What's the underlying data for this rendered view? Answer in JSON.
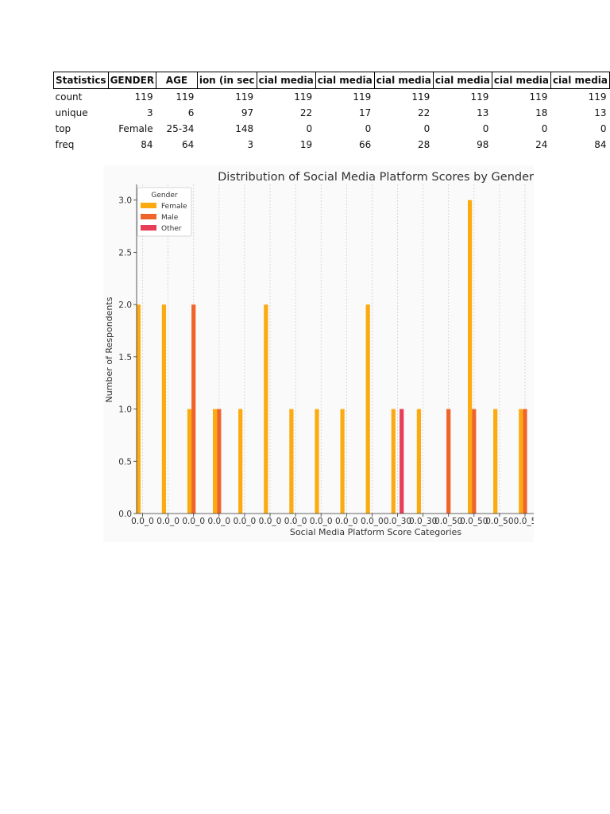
{
  "table": {
    "columns": [
      "Statistics",
      "GENDER",
      "AGE",
      "ion (in sec",
      "cial media",
      "cial media",
      "cial media",
      "cial media",
      "cial media",
      "cial media"
    ],
    "rows": [
      {
        "label": "count",
        "cells": [
          "119",
          "119",
          "119",
          "119",
          "119",
          "119",
          "119",
          "119",
          "119"
        ]
      },
      {
        "label": "unique",
        "cells": [
          "3",
          "6",
          "97",
          "22",
          "17",
          "22",
          "13",
          "18",
          "13"
        ]
      },
      {
        "label": "top",
        "cells": [
          "Female",
          "25-34",
          "148",
          "0",
          "0",
          "0",
          "0",
          "0",
          "0"
        ]
      },
      {
        "label": "freq",
        "cells": [
          "84",
          "64",
          "3",
          "19",
          "66",
          "28",
          "98",
          "24",
          "84"
        ]
      }
    ]
  },
  "chart_data": {
    "type": "bar",
    "title": "Distribution of Social Media Platform Scores by Gender",
    "xlabel": "Social Media Platform Score Categories",
    "ylabel": "Number of Respondents",
    "ylim": [
      0,
      3.15
    ],
    "yticks": [
      "0.0",
      "0.5",
      "1.0",
      "1.5",
      "2.0",
      "2.5",
      "3.0"
    ],
    "grid": "vertical dashed",
    "legend_position": "top-left",
    "legend_title": "Gender",
    "categories": [
      "0.0_0",
      "0.0_0",
      "0.0_0",
      "0.0_0",
      "0.0_0",
      "0.0_0",
      "0.0_0",
      "0.0_0",
      "0.0_0",
      "0.0_0",
      "0.0_30",
      "0.0_30",
      "0.0_50",
      "0.0_50",
      "0.0_50",
      "0.0_5"
    ],
    "series": [
      {
        "name": "Female",
        "color": "#fbab10",
        "values": [
          2,
          2,
          1,
          1,
          1,
          2,
          1,
          1,
          1,
          2,
          1,
          1,
          0,
          3,
          1,
          1
        ]
      },
      {
        "name": "Male",
        "color": "#ef6429",
        "values": [
          0,
          0,
          2,
          1,
          0,
          0,
          0,
          0,
          0,
          0,
          0,
          0,
          1,
          1,
          0,
          1
        ]
      },
      {
        "name": "Other",
        "color": "#e83d56",
        "values": [
          0,
          0,
          0,
          0,
          0,
          0,
          0,
          0,
          0,
          0,
          1,
          0,
          0,
          0,
          0,
          0
        ]
      }
    ]
  }
}
